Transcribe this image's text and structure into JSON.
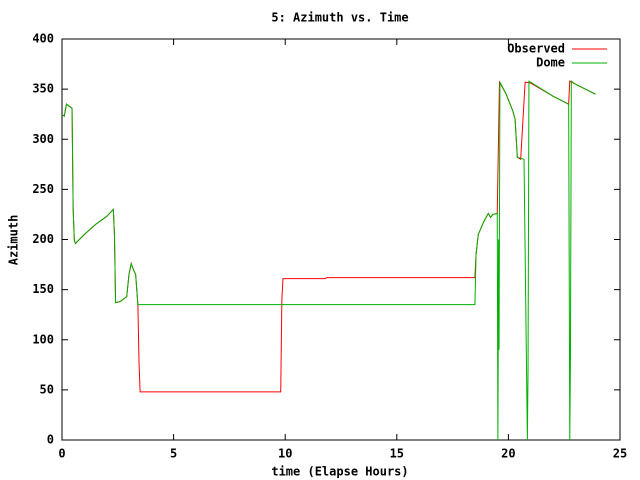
{
  "chart_data": {
    "type": "line",
    "title": "5: Azimuth vs. Time",
    "x_label": "time (Elapse Hours)",
    "y_label": "Azimuth",
    "xlim": [
      0,
      25
    ],
    "xticks": [
      0,
      5,
      10,
      15,
      20,
      25
    ],
    "ylim": [
      0,
      400
    ],
    "yticks": [
      0,
      50,
      100,
      150,
      200,
      250,
      300,
      350,
      400
    ],
    "grid": false,
    "legend": "top-right",
    "series": [
      {
        "name": "Observed",
        "color": "#ff0000",
        "x": [
          0,
          0.1,
          0.2,
          0.45,
          0.5,
          0.55,
          0.6,
          1.0,
          1.5,
          2.0,
          2.3,
          2.35,
          2.4,
          2.6,
          2.9,
          3.0,
          3.1,
          3.2,
          3.3,
          3.4,
          3.45,
          3.5,
          9.8,
          9.85,
          9.9,
          11.8,
          11.85,
          18.5,
          18.55,
          18.65,
          18.9,
          19.1,
          19.2,
          19.3,
          19.5,
          19.6,
          19.9,
          20.2,
          20.3,
          20.4,
          20.55,
          20.75,
          21.0,
          22.0,
          22.7,
          22.75,
          23.0,
          23.9
        ],
        "values": [
          325,
          323,
          335,
          331,
          230,
          200,
          196,
          205,
          215,
          223,
          230,
          205,
          137,
          138,
          143,
          165,
          176,
          170,
          165,
          135,
          78,
          48,
          48,
          140,
          161,
          161,
          162,
          162,
          185,
          205,
          218,
          226,
          222,
          225,
          226,
          357,
          345,
          328,
          320,
          282,
          280,
          357,
          356,
          343,
          335,
          358,
          355,
          345
        ]
      },
      {
        "name": "Dome",
        "color": "#00b000",
        "x": [
          0,
          0.1,
          0.2,
          0.45,
          0.5,
          0.55,
          0.6,
          1.0,
          1.5,
          2.0,
          2.3,
          2.35,
          2.4,
          2.6,
          2.9,
          3.0,
          3.1,
          3.2,
          3.3,
          3.4,
          3.45,
          18.5,
          18.55,
          18.65,
          18.9,
          19.1,
          19.2,
          19.3,
          19.5,
          19.53,
          19.56,
          19.58,
          19.62,
          19.9,
          20.2,
          20.3,
          20.4,
          20.7,
          20.85,
          20.88,
          20.92,
          22.0,
          22.7,
          22.75,
          22.78,
          22.82,
          23.0,
          23.9
        ],
        "values": [
          325,
          323,
          335,
          331,
          230,
          200,
          196,
          205,
          215,
          223,
          230,
          205,
          137,
          138,
          143,
          165,
          176,
          170,
          165,
          135,
          135,
          135,
          185,
          205,
          218,
          226,
          222,
          225,
          226,
          0,
          200,
          90,
          357,
          345,
          328,
          320,
          282,
          280,
          0,
          70,
          358,
          343,
          335,
          0,
          83,
          358,
          355,
          345
        ]
      }
    ]
  }
}
